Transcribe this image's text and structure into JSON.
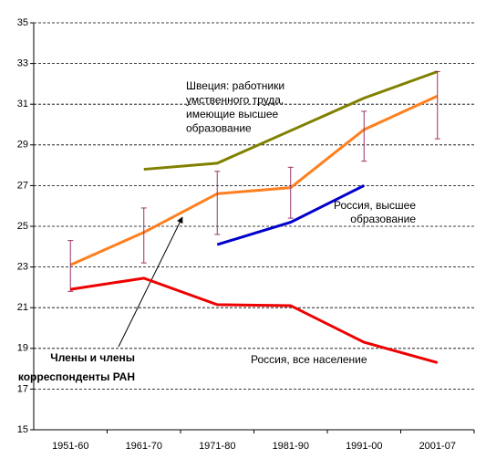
{
  "chart_data": {
    "type": "line",
    "categories": [
      "1951-60",
      "1961-70",
      "1971-80",
      "1981-90",
      "1991-00",
      "2001-07"
    ],
    "ylim": [
      15,
      35
    ],
    "yticks": [
      15,
      17,
      19,
      21,
      23,
      25,
      27,
      29,
      31,
      33,
      35
    ],
    "grid": true,
    "series": [
      {
        "color": "#808000",
        "values": [
          null,
          27.8,
          28.1,
          29.7,
          31.3,
          32.6
        ]
      },
      {
        "color": "#ff7f1e",
        "values": [
          23.1,
          24.7,
          26.6,
          26.9,
          29.75,
          31.4
        ],
        "error_low": [
          21.8,
          23.2,
          24.6,
          25.4,
          28.2,
          29.3
        ],
        "error_high": [
          24.3,
          25.9,
          27.7,
          27.9,
          30.65,
          32.6
        ],
        "error_color": "#993366"
      },
      {
        "color": "#0000cc",
        "values": [
          null,
          null,
          24.1,
          25.2,
          27.0,
          null
        ]
      },
      {
        "color": "#ee0000",
        "values": [
          21.9,
          22.45,
          21.15,
          21.1,
          19.3,
          18.3
        ]
      }
    ],
    "annotations": [
      {
        "lines": [
          "Швеция: работники",
          "умственного труда,",
          "имеющие высшее",
          "образование"
        ]
      },
      {
        "lines": [
          "Россия, высшее",
          "образование"
        ]
      },
      {
        "lines": [
          "Россия,  все население"
        ]
      },
      {
        "lines": [
          "Члены и члены",
          "корреспонденты РАН"
        ],
        "bold": true
      }
    ]
  }
}
